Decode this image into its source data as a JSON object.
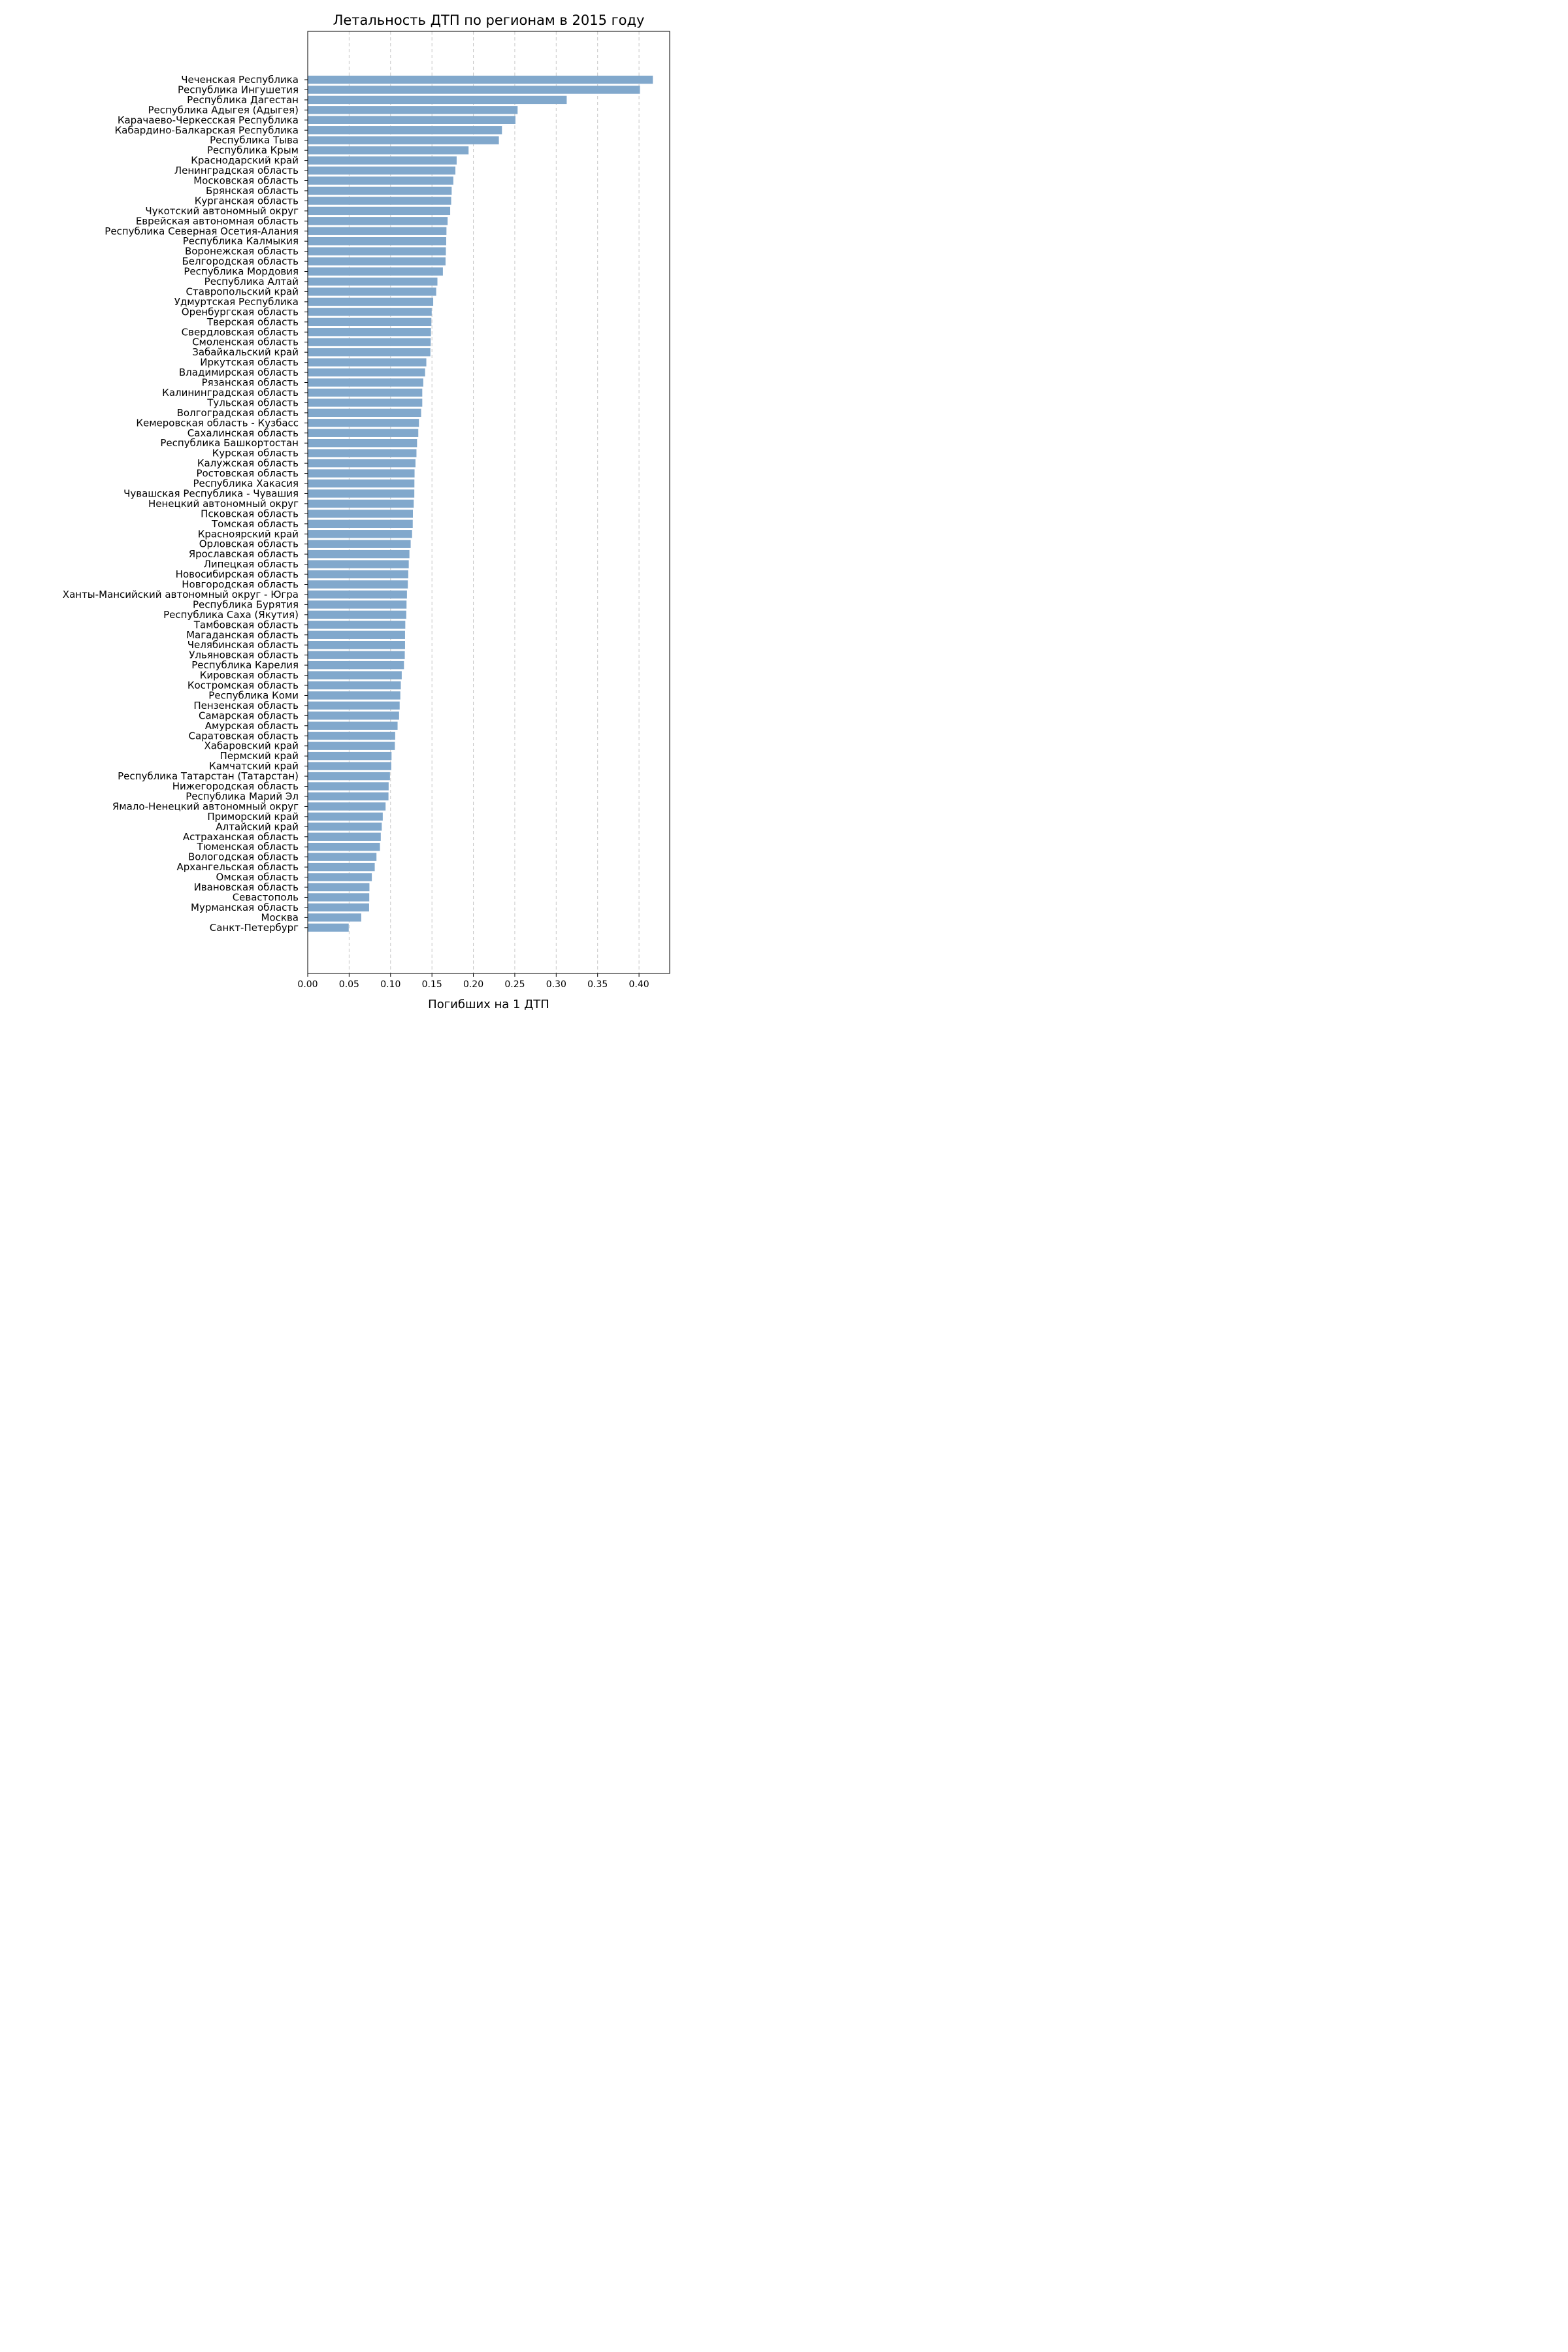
{
  "chart_data": {
    "type": "bar",
    "orientation": "horizontal",
    "title": "Летальность ДТП по регионам в 2015 году",
    "xlabel": "Погибших на 1 ДТП",
    "ylabel": "",
    "xlim": [
      0,
      0.437
    ],
    "xticks": [
      "0.00",
      "0.05",
      "0.10",
      "0.15",
      "0.20",
      "0.25",
      "0.30",
      "0.35",
      "0.40"
    ],
    "grid": "x, dashed",
    "legend": "none",
    "bar_color": "#81a8cc",
    "categories": [
      "Чеченская Республика",
      "Республика Ингушетия",
      "Республика Дагестан",
      "Республика Адыгея (Адыгея)",
      "Карачаево-Черкесская Республика",
      "Кабардино-Балкарская Республика",
      "Республика Тыва",
      "Республика Крым",
      "Краснодарский край",
      "Ленинградская область",
      "Московская область",
      "Брянская область",
      "Курганская область",
      "Чукотский автономный округ",
      "Еврейская автономная область",
      "Республика Северная Осетия-Алания",
      "Республика Калмыкия",
      "Воронежская область",
      "Белгородская область",
      "Республика Мордовия",
      "Республика Алтай",
      "Ставропольский край",
      "Удмуртская Республика",
      "Оренбургская область",
      "Тверская область",
      "Свердловская область",
      "Смоленская область",
      "Забайкальский край",
      "Иркутская область",
      "Владимирская область",
      "Рязанская область",
      "Калининградская область",
      "Тульская область",
      "Волгоградская область",
      "Кемеровская область - Кузбасс",
      "Сахалинская область",
      "Республика Башкортостан",
      "Курская область",
      "Калужская область",
      "Ростовская область",
      "Республика Хакасия",
      "Чувашская Республика - Чувашия",
      "Ненецкий автономный округ",
      "Псковская область",
      "Томская область",
      "Красноярский край",
      "Орловская область",
      "Ярославская область",
      "Липецкая область",
      "Новосибирская область",
      "Новгородская область",
      "Ханты-Мансийский автономный округ - Югра",
      "Республика Бурятия",
      "Республика Саха (Якутия)",
      "Тамбовская область",
      "Магаданская область",
      "Челябинская область",
      "Ульяновская область",
      "Республика Карелия",
      "Кировская область",
      "Костромская область",
      "Республика Коми",
      "Пензенская область",
      "Самарская область",
      "Амурская область",
      "Саратовская область",
      "Хабаровский край",
      "Пермский край",
      "Камчатский край",
      "Республика Татарстан (Татарстан)",
      "Нижегородская область",
      "Республика Марий Эл",
      "Ямало-Ненецкий автономный округ",
      "Приморский край",
      "Алтайский край",
      "Астраханская область",
      "Тюменская область",
      "Вологодская область",
      "Архангельская область",
      "Омская область",
      "Ивановская область",
      "Севастополь",
      "Мурманская область",
      "Москва",
      "Санкт-Петербург"
    ],
    "values": [
      0.4167,
      0.4011,
      0.3127,
      0.2534,
      0.2508,
      0.2345,
      0.2308,
      0.1942,
      0.1798,
      0.1783,
      0.1758,
      0.1738,
      0.1732,
      0.172,
      0.1689,
      0.1675,
      0.1672,
      0.1668,
      0.1664,
      0.1632,
      0.1566,
      0.1551,
      0.1515,
      0.1497,
      0.1493,
      0.1488,
      0.1485,
      0.1481,
      0.1432,
      0.1417,
      0.1395,
      0.1383,
      0.1383,
      0.1369,
      0.1343,
      0.1335,
      0.132,
      0.1313,
      0.1301,
      0.129,
      0.1288,
      0.1287,
      0.128,
      0.127,
      0.1268,
      0.126,
      0.1243,
      0.1228,
      0.122,
      0.1214,
      0.1209,
      0.1198,
      0.1193,
      0.119,
      0.1178,
      0.1175,
      0.1175,
      0.1172,
      0.1162,
      0.1135,
      0.1124,
      0.1118,
      0.111,
      0.1103,
      0.1085,
      0.1056,
      0.1052,
      0.1012,
      0.1009,
      0.0993,
      0.0977,
      0.0975,
      0.094,
      0.0906,
      0.0894,
      0.0882,
      0.0872,
      0.083,
      0.0809,
      0.0774,
      0.0745,
      0.0743,
      0.0741,
      0.0646,
      0.0495
    ]
  }
}
